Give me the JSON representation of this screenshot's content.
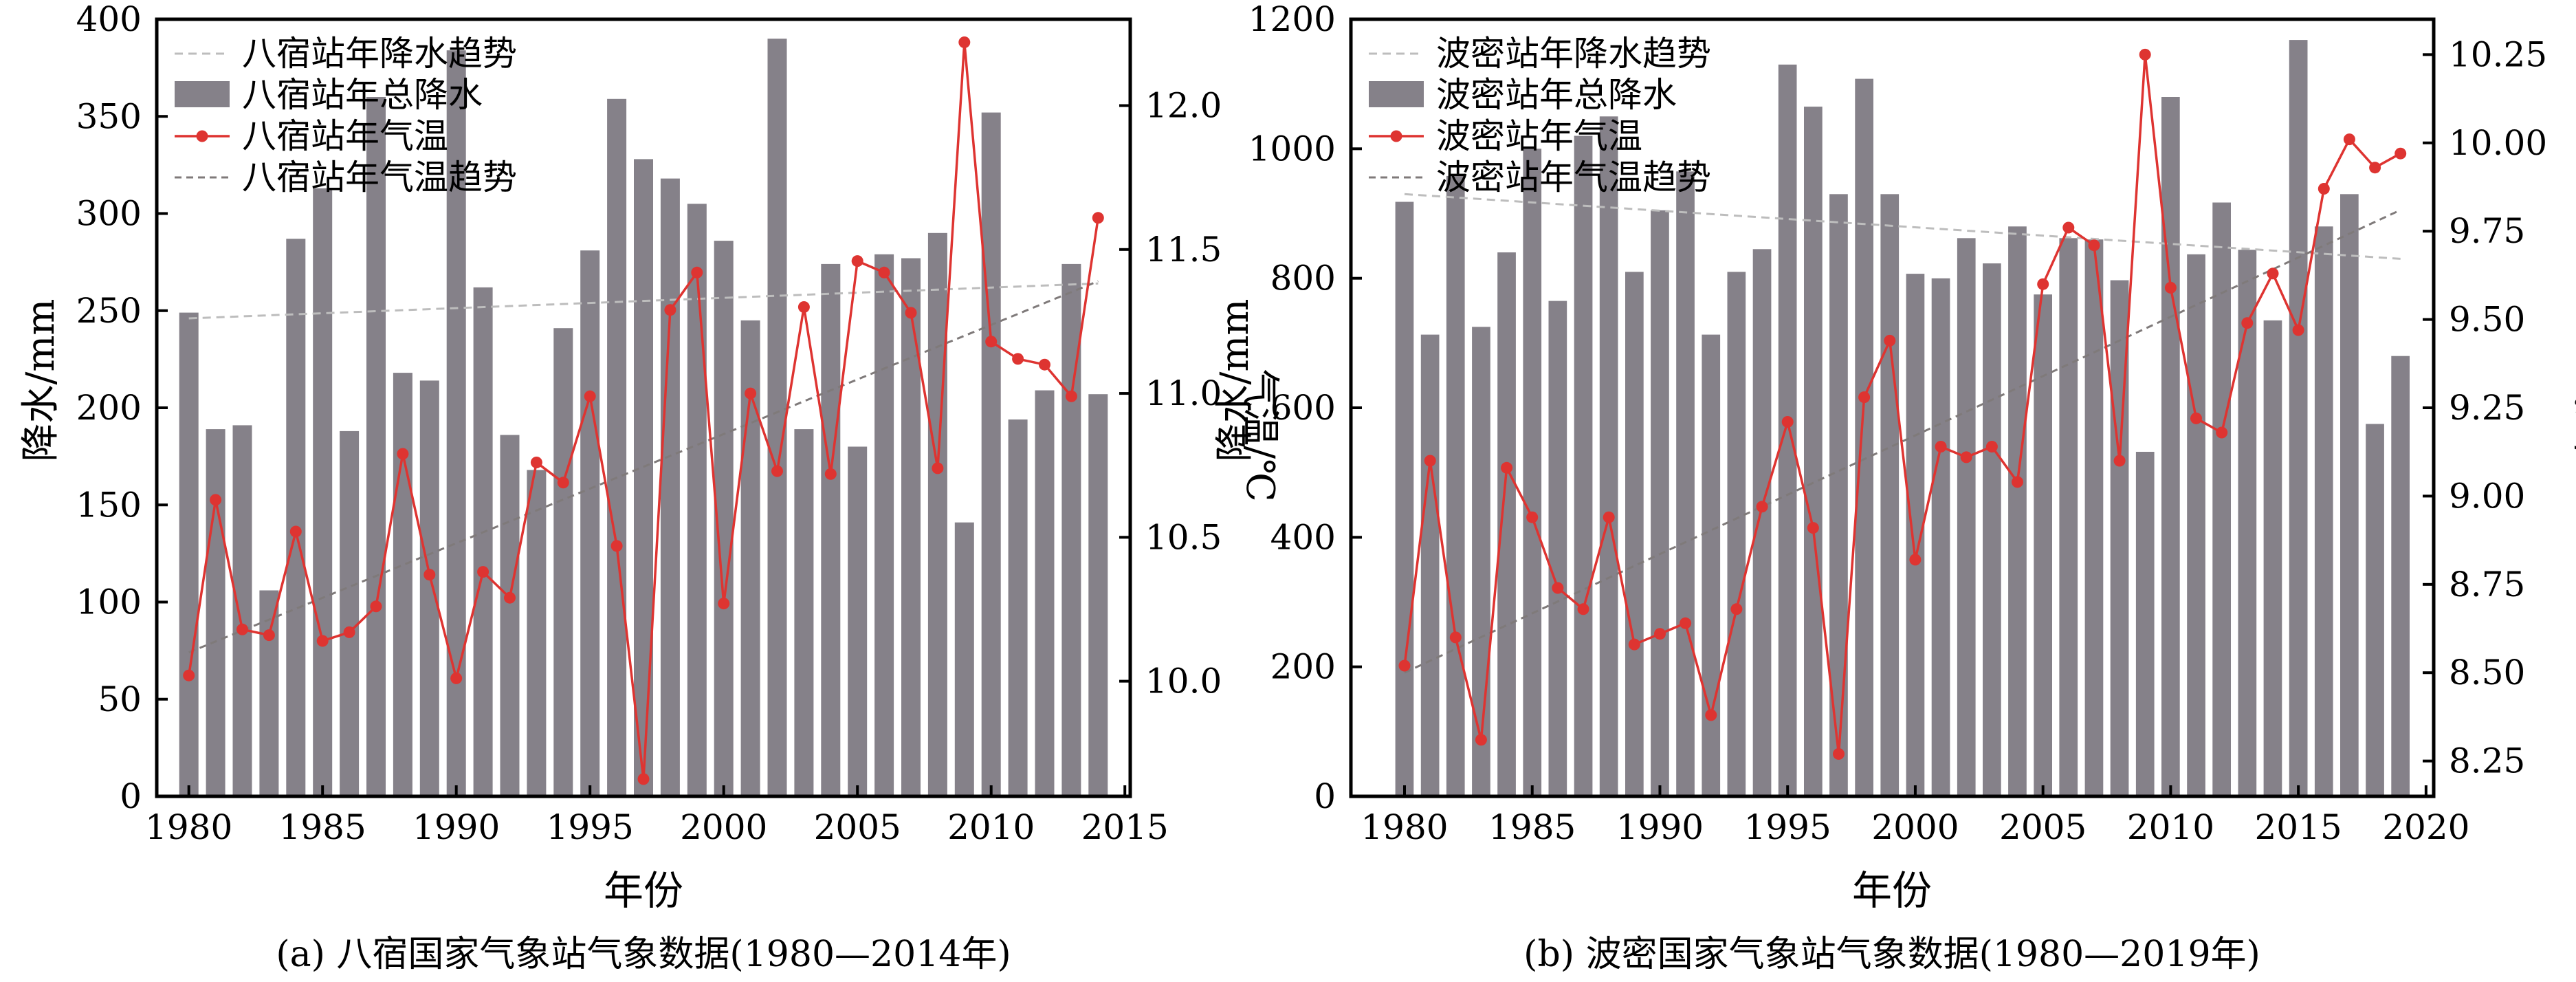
{
  "chart_data": [
    {
      "type": "bar+line",
      "caption": "(a) 八宿国家气象站气象数据(1980—2014年)",
      "xlabel": "年份",
      "ylabel_left": "降水/mm",
      "ylabel_right": "气温/℃",
      "x_range": [
        1978.8,
        2015.2
      ],
      "y_left_range": [
        0,
        400
      ],
      "y_right_range": [
        9.6,
        12.3
      ],
      "x_ticks": [
        1980,
        1985,
        1990,
        1995,
        2000,
        2005,
        2010,
        2015
      ],
      "y_left_ticks": [
        0,
        50,
        100,
        150,
        200,
        250,
        300,
        350,
        400
      ],
      "y_right_ticks": [
        10.0,
        10.5,
        11.0,
        11.5,
        12.0
      ],
      "y_right_tick_labels": [
        "10.0",
        "10.5",
        "11.0",
        "11.5",
        "12.0"
      ],
      "years": [
        1980,
        1981,
        1982,
        1983,
        1984,
        1985,
        1986,
        1987,
        1988,
        1989,
        1990,
        1991,
        1992,
        1993,
        1994,
        1995,
        1996,
        1997,
        1998,
        1999,
        2000,
        2001,
        2002,
        2003,
        2004,
        2005,
        2006,
        2007,
        2008,
        2009,
        2010,
        2011,
        2012,
        2013,
        2014
      ],
      "legend": {
        "placement": "upper-left",
        "entries": [
          "八宿站年降水趋势",
          "八宿站年总降水",
          "八宿站年气温",
          "八宿站年气温趋势"
        ]
      },
      "series": [
        {
          "name": "八宿站年总降水",
          "type": "bar",
          "axis": "left",
          "color": "#858189",
          "values": [
            249,
            189,
            191,
            106,
            287,
            313,
            188,
            360,
            218,
            214,
            384,
            262,
            186,
            168,
            241,
            281,
            359,
            328,
            318,
            305,
            286,
            245,
            390,
            189,
            274,
            180,
            279,
            277,
            290,
            141,
            352,
            194,
            209,
            274,
            207
          ]
        },
        {
          "name": "八宿站年气温",
          "type": "line",
          "axis": "right",
          "color": "#de3431",
          "marker": "circle",
          "values": [
            10.02,
            10.63,
            10.18,
            10.16,
            10.52,
            10.14,
            10.17,
            10.26,
            10.79,
            10.37,
            10.01,
            10.38,
            10.29,
            10.76,
            10.69,
            10.99,
            10.47,
            9.66,
            11.29,
            11.42,
            10.27,
            11.0,
            10.73,
            11.3,
            10.72,
            11.46,
            11.42,
            11.28,
            10.74,
            12.22,
            11.18,
            11.12,
            11.1,
            10.99,
            11.61
          ]
        },
        {
          "name": "八宿站年降水趋势",
          "type": "trend",
          "axis": "left",
          "color": "#bdbdbd",
          "x": [
            1980,
            2014
          ],
          "values": [
            246,
            264
          ]
        },
        {
          "name": "八宿站年气温趋势",
          "type": "trend",
          "axis": "right",
          "color": "#7f7a7a",
          "x": [
            1980,
            2014
          ],
          "values": [
            10.1,
            11.39
          ]
        }
      ]
    },
    {
      "type": "bar+line",
      "caption": "(b) 波密国家气象站气象数据(1980—2019年)",
      "xlabel": "年份",
      "ylabel_left": "降水/mm",
      "ylabel_right": "气温/℃",
      "x_range": [
        1977.9,
        2020.3
      ],
      "y_left_range": [
        0,
        1200
      ],
      "y_right_range": [
        8.15,
        10.35
      ],
      "x_ticks": [
        1980,
        1985,
        1990,
        1995,
        2000,
        2005,
        2010,
        2015,
        2020
      ],
      "y_left_ticks": [
        0,
        200,
        400,
        600,
        800,
        1000,
        1200
      ],
      "y_right_ticks": [
        8.25,
        8.5,
        8.75,
        9.0,
        9.25,
        9.5,
        9.75,
        10.0,
        10.25
      ],
      "y_right_tick_labels": [
        "8.25",
        "8.50",
        "8.75",
        "9.00",
        "9.25",
        "9.50",
        "9.75",
        "10.00",
        "10.25"
      ],
      "years": [
        1980,
        1981,
        1982,
        1983,
        1984,
        1985,
        1986,
        1987,
        1988,
        1989,
        1990,
        1991,
        1992,
        1993,
        1994,
        1995,
        1996,
        1997,
        1998,
        1999,
        2000,
        2001,
        2002,
        2003,
        2004,
        2005,
        2006,
        2007,
        2008,
        2009,
        2010,
        2011,
        2012,
        2013,
        2014,
        2015,
        2016,
        2017,
        2018,
        2019
      ],
      "legend": {
        "placement": "upper-left",
        "entries": [
          "波密站年降水趋势",
          "波密站年总降水",
          "波密站年气温",
          "波密站年气温趋势"
        ]
      },
      "series": [
        {
          "name": "波密站年总降水",
          "type": "bar",
          "axis": "left",
          "color": "#858189",
          "values": [
            918,
            713,
            958,
            725,
            840,
            1000,
            765,
            1020,
            1050,
            810,
            905,
            965,
            713,
            810,
            845,
            1130,
            1065,
            930,
            1108,
            930,
            807,
            800,
            862,
            823,
            880,
            775,
            862,
            860,
            797,
            532,
            1080,
            837,
            917,
            844,
            735,
            1168,
            880,
            930,
            575,
            680
          ]
        },
        {
          "name": "波密站年气温",
          "type": "line",
          "axis": "right",
          "color": "#de3431",
          "marker": "circle",
          "values": [
            8.52,
            9.1,
            8.6,
            8.31,
            9.08,
            8.94,
            8.74,
            8.68,
            8.94,
            8.58,
            8.61,
            8.64,
            8.38,
            8.68,
            8.97,
            9.21,
            8.91,
            8.27,
            9.28,
            9.44,
            8.82,
            9.14,
            9.11,
            9.14,
            9.04,
            9.6,
            9.76,
            9.71,
            9.1,
            10.25,
            9.59,
            9.22,
            9.18,
            9.49,
            9.63,
            9.47,
            9.87,
            10.01,
            9.93,
            9.97
          ]
        },
        {
          "name": "波密站年降水趋势",
          "type": "trend",
          "axis": "left",
          "color": "#bdbdbd",
          "x": [
            1980,
            2019
          ],
          "values": [
            930,
            830
          ]
        },
        {
          "name": "波密站年气温趋势",
          "type": "trend",
          "axis": "right",
          "color": "#7f7a7a",
          "x": [
            1980,
            2019
          ],
          "values": [
            8.5,
            9.81
          ]
        }
      ]
    }
  ]
}
